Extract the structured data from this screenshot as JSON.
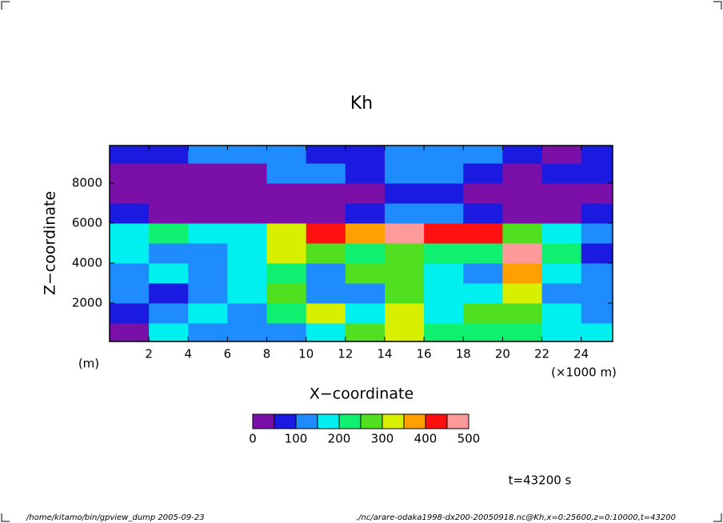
{
  "chart_data": {
    "type": "contour",
    "title": "Kh",
    "x_label": "X−coordinate",
    "y_label": "Z−coordinate",
    "y_unit_label": "(m)",
    "x_unit_label": "(×1000 m)",
    "time_label": "t=43200 s",
    "x": [
      1,
      3,
      5,
      7,
      9,
      11,
      13,
      15,
      17,
      19,
      21,
      23,
      25
    ],
    "y": [
      500,
      1500,
      2500,
      3500,
      4500,
      5500,
      6500,
      7500,
      8500,
      9500
    ],
    "values": [
      [
        40,
        150,
        110,
        130,
        140,
        150,
        260,
        320,
        230,
        200,
        220,
        150,
        180
      ],
      [
        60,
        100,
        150,
        130,
        200,
        330,
        170,
        300,
        160,
        280,
        280,
        160,
        120
      ],
      [
        120,
        80,
        110,
        160,
        260,
        130,
        110,
        270,
        170,
        150,
        330,
        130,
        120
      ],
      [
        100,
        150,
        120,
        170,
        220,
        120,
        260,
        250,
        150,
        100,
        380,
        150,
        100
      ],
      [
        170,
        120,
        130,
        180,
        300,
        250,
        200,
        280,
        230,
        200,
        450,
        200,
        60
      ],
      [
        180,
        220,
        170,
        150,
        320,
        420,
        380,
        480,
        420,
        400,
        280,
        150,
        120
      ],
      [
        70,
        20,
        20,
        20,
        20,
        20,
        60,
        140,
        130,
        80,
        20,
        40,
        60
      ],
      [
        20,
        20,
        20,
        20,
        20,
        20,
        20,
        60,
        60,
        20,
        20,
        20,
        20
      ],
      [
        20,
        20,
        30,
        20,
        100,
        120,
        80,
        110,
        130,
        60,
        20,
        80,
        70
      ],
      [
        80,
        60,
        120,
        130,
        100,
        80,
        90,
        110,
        130,
        120,
        60,
        40,
        80
      ]
    ],
    "xlim": [
      0,
      25.6
    ],
    "ylim": [
      0,
      10000
    ],
    "xticks": [
      2,
      4,
      6,
      8,
      10,
      12,
      14,
      16,
      18,
      20,
      22,
      24
    ],
    "yticks": [
      2000,
      4000,
      6000,
      8000
    ],
    "levels": [
      0,
      50,
      100,
      150,
      200,
      250,
      300,
      350,
      400,
      450,
      500
    ],
    "level_colors": [
      "#7a10a8",
      "#1a1ae0",
      "#1e8cff",
      "#00f0f0",
      "#10f070",
      "#50e020",
      "#d8f000",
      "#ffa000",
      "#ff1010",
      "#ff9a9a"
    ],
    "colorbar_ticks": [
      0,
      100,
      200,
      300,
      400,
      500
    ]
  },
  "footer": {
    "left": "/home/kitamo/bin/gpview_dump  2005-09-23",
    "right": "./nc/arare-odaka1998-dx200-20050918.nc@Kh,x=0:25600,z=0:10000,t=43200"
  }
}
